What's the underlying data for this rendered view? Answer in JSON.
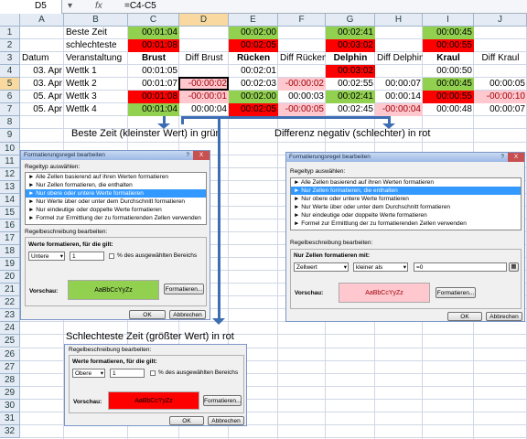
{
  "formula_bar": {
    "name_box": "D5",
    "fx": "fx",
    "formula": "=C4-C5"
  },
  "columns": [
    "A",
    "B",
    "C",
    "D",
    "E",
    "F",
    "G",
    "H",
    "I",
    "J"
  ],
  "rows": [
    "1",
    "2",
    "3",
    "4",
    "5",
    "6",
    "7",
    "8",
    "9",
    "10",
    "11",
    "12",
    "13",
    "14",
    "15",
    "16",
    "17",
    "18",
    "19",
    "20",
    "21",
    "22",
    "23",
    "24",
    "25",
    "26",
    "27",
    "28",
    "29",
    "30",
    "31",
    "32"
  ],
  "sheet": {
    "best": "Beste Zeit",
    "worst": "schlechteste",
    "datum": "Datum",
    "veranstaltung": "Veranstaltung",
    "brust": "Brust",
    "diff_brust": "Diff Brust",
    "ruecken": "Rücken",
    "diff_ruecken": "Diff Rücken",
    "delphin": "Delphin",
    "diff_delphin": "Diff Delphin",
    "kraul": "Kraul",
    "diff_kraul": "Diff Kraul",
    "best_vals": [
      "00:01:04",
      "00:02:00",
      "00:02:41",
      "00:00:45"
    ],
    "worst_vals": [
      "00:01:08",
      "00:02:05",
      "00:03:02",
      "00:00:55"
    ],
    "r4": {
      "date": "03. Apr",
      "ev": "Wettk 1",
      "c": "00:01:05",
      "e": "00:02:01",
      "g": "00:03:02",
      "i": "00:00:50"
    },
    "r5": {
      "date": "03. Apr",
      "ev": "Wettk 2",
      "c": "00:01:07",
      "d": "-00:00:02",
      "e": "00:02:03",
      "f": "-00:00:02",
      "g": "00:02:55",
      "h": "00:00:07",
      "i": "00:00:45",
      "j": "00:00:05"
    },
    "r6": {
      "date": "05. Apr",
      "ev": "Wettk 3",
      "c": "00:01:08",
      "d": "-00:00:01",
      "e": "00:02:00",
      "f": "00:00:03",
      "g": "00:02:41",
      "h": "00:00:14",
      "i": "00:00:55",
      "j": "-00:00:10"
    },
    "r7": {
      "date": "05. Apr",
      "ev": "Wettk 4",
      "c": "00:01:04",
      "d": "00:00:04",
      "e": "00:02:05",
      "f": "-00:00:05",
      "g": "00:02:45",
      "h": "-00:00:04",
      "i": "00:00:48",
      "j": "00:00:07"
    }
  },
  "headings": {
    "h1": "Beste Zeit (kleinster Wert) in grün",
    "h2": "Differenz negativ (schlechter) in rot",
    "h3": "Schlechteste Zeit (größter Wert) in rot"
  },
  "dialog1": {
    "title": "Formatierungsregel bearbeiten",
    "q": "?",
    "x": "X",
    "type_label": "Regeltyp auswählen:",
    "items": [
      "► Alle Zellen basierend auf ihren Werten formatieren",
      "► Nur Zellen formatieren, die enthalten",
      "► Nur obere oder untere Werte formatieren",
      "► Nur Werte über oder unter dem Durchschnitt formatieren",
      "► Nur eindeutige oder doppelte Werte formatieren",
      "► Formel zur Ermittlung der zu formatierenden Zellen verwenden"
    ],
    "desc_label": "Regelbeschreibung bearbeiten:",
    "sub_label": "Werte formatieren, für die gilt:",
    "select": "Untere",
    "num": "1",
    "pct": "% des ausgewählten Bereichs",
    "preview_label": "Vorschau:",
    "preview": "AaBbCcYyZz",
    "format_btn": "Formatieren...",
    "ok": "OK",
    "cancel": "Abbrechen"
  },
  "dialog2": {
    "title": "Formatierungsregel bearbeiten",
    "q": "?",
    "x": "X",
    "type_label": "Regeltyp auswählen:",
    "items": [
      "► Alle Zellen basierend auf ihren Werten formatieren",
      "► Nur Zellen formatieren, die enthalten",
      "► Nur obere oder untere Werte formatieren",
      "► Nur Werte über oder unter dem Durchschnitt formatieren",
      "► Nur eindeutige oder doppelte Werte formatieren",
      "► Formel zur Ermittlung der zu formatierenden Zellen verwenden"
    ],
    "desc_label": "Regelbeschreibung bearbeiten:",
    "sub_label": "Nur Zellen formatieren mit:",
    "sel1": "Zellwert",
    "sel2": "kleiner als",
    "val": "=0",
    "preview_label": "Vorschau:",
    "preview": "AaBbCcYyZz",
    "format_btn": "Formatieren...",
    "ok": "OK",
    "cancel": "Abbrechen"
  },
  "dialog3": {
    "desc_label": "Regelbeschreibung bearbeiten:",
    "sub_label": "Werte formatieren, für die gilt:",
    "select": "Obere",
    "num": "1",
    "pct": "% des ausgewählten Bereichs",
    "preview_label": "Vorschau:",
    "preview": "AaBbCcYyZz",
    "format_btn": "Formatieren...",
    "ok": "OK",
    "cancel": "Abbrechen"
  }
}
